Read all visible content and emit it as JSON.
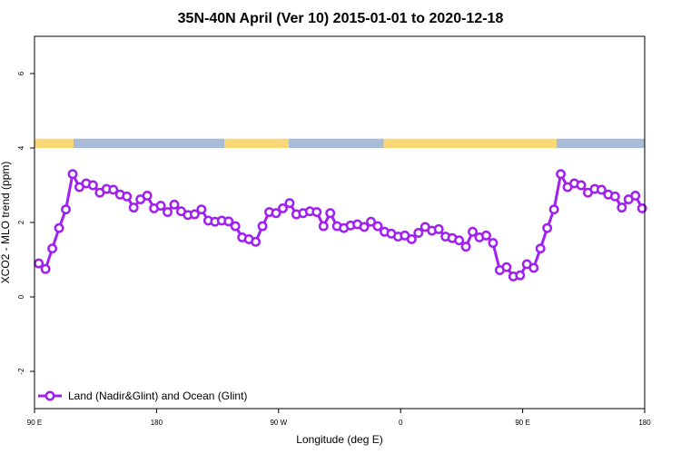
{
  "chart_data": {
    "type": "line",
    "title": "35N-40N April (Ver 10)   2015-01-01 to 2020-12-18",
    "xlabel": "Longitude (deg E)",
    "ylabel": "XCO2 - MLO trend (ppm)",
    "xlim": [
      90,
      450
    ],
    "ylim": [
      -3,
      7
    ],
    "x_ticks": [
      {
        "value": 90,
        "label": "90 E"
      },
      {
        "value": 162,
        "label": "180"
      },
      {
        "value": 234,
        "label": "90 W"
      },
      {
        "value": 306,
        "label": "0"
      },
      {
        "value": 378,
        "label": "90 E"
      },
      {
        "value": 450,
        "label": "180"
      }
    ],
    "y_ticks": [
      -2,
      0,
      2,
      4,
      6
    ],
    "grid": false,
    "legend_position": "bottom-left",
    "series": [
      {
        "name": "Land (Nadir&Glint) and Ocean (Glint)",
        "color": "#a020f0",
        "x": [
          92.5,
          96.5,
          100.5,
          104.5,
          108.5,
          112.5,
          116.5,
          120.5,
          124.5,
          128.5,
          132.5,
          136.5,
          140.5,
          144.5,
          148.5,
          152.5,
          156.5,
          160.5,
          164.5,
          168.5,
          172.5,
          176.5,
          180.5,
          184.5,
          188.5,
          192.5,
          196.5,
          200.5,
          204.5,
          208.5,
          212.5,
          216.5,
          220.5,
          224.5,
          228.5,
          232.5,
          236.5,
          240.5,
          244.5,
          248.5,
          252.5,
          256.5,
          260.5,
          264.5,
          268.5,
          272.5,
          276.5,
          280.5,
          284.5,
          288.5,
          292.5,
          296.5,
          300.5,
          304.5,
          308.5,
          312.5,
          316.5,
          320.5,
          324.5,
          328.5,
          332.5,
          336.5,
          340.5,
          344.5,
          348.5,
          352.5,
          356.5,
          360.5,
          364.5,
          368.5,
          372.5,
          376.5,
          380.5,
          384.5,
          388.5,
          392.5,
          396.5,
          400.5,
          404.5,
          408.5,
          412.5,
          416.5,
          420.5,
          424.5,
          428.5,
          432.5,
          436.5,
          440.5,
          444.5,
          448.5
        ],
        "values": [
          0.9,
          0.75,
          1.3,
          1.85,
          2.35,
          3.3,
          2.95,
          3.05,
          3.0,
          2.8,
          2.9,
          2.88,
          2.75,
          2.7,
          2.4,
          2.62,
          2.72,
          2.38,
          2.45,
          2.28,
          2.48,
          2.3,
          2.2,
          2.22,
          2.35,
          2.05,
          2.02,
          2.05,
          2.03,
          1.9,
          1.6,
          1.55,
          1.48,
          1.9,
          2.28,
          2.25,
          2.38,
          2.52,
          2.22,
          2.25,
          2.3,
          2.28,
          1.9,
          2.25,
          1.9,
          1.85,
          1.92,
          1.95,
          1.88,
          2.02,
          1.9,
          1.75,
          1.7,
          1.62,
          1.65,
          1.55,
          1.72,
          1.88,
          1.78,
          1.82,
          1.62,
          1.58,
          1.52,
          1.35,
          1.75,
          1.6,
          1.65,
          1.45,
          0.72,
          0.8,
          0.55,
          0.58,
          0.88,
          0.78,
          1.3,
          1.85,
          2.35,
          3.3,
          2.95,
          3.05,
          3.0,
          2.8,
          2.9,
          2.88,
          2.75,
          2.7,
          2.4,
          2.62,
          2.72,
          2.38
        ]
      }
    ],
    "surface_strip": {
      "y_range": [
        4.0,
        4.25
      ],
      "colors": {
        "land": "#f9d976",
        "ocean": "#a8bcd8"
      },
      "segments": [
        {
          "type": "land",
          "from": 90,
          "to": 113
        },
        {
          "type": "ocean",
          "from": 113,
          "to": 202
        },
        {
          "type": "land",
          "from": 202,
          "to": 240
        },
        {
          "type": "ocean",
          "from": 240,
          "to": 296
        },
        {
          "type": "land",
          "from": 296,
          "to": 398
        },
        {
          "type": "ocean",
          "from": 398,
          "to": 450
        }
      ]
    }
  }
}
